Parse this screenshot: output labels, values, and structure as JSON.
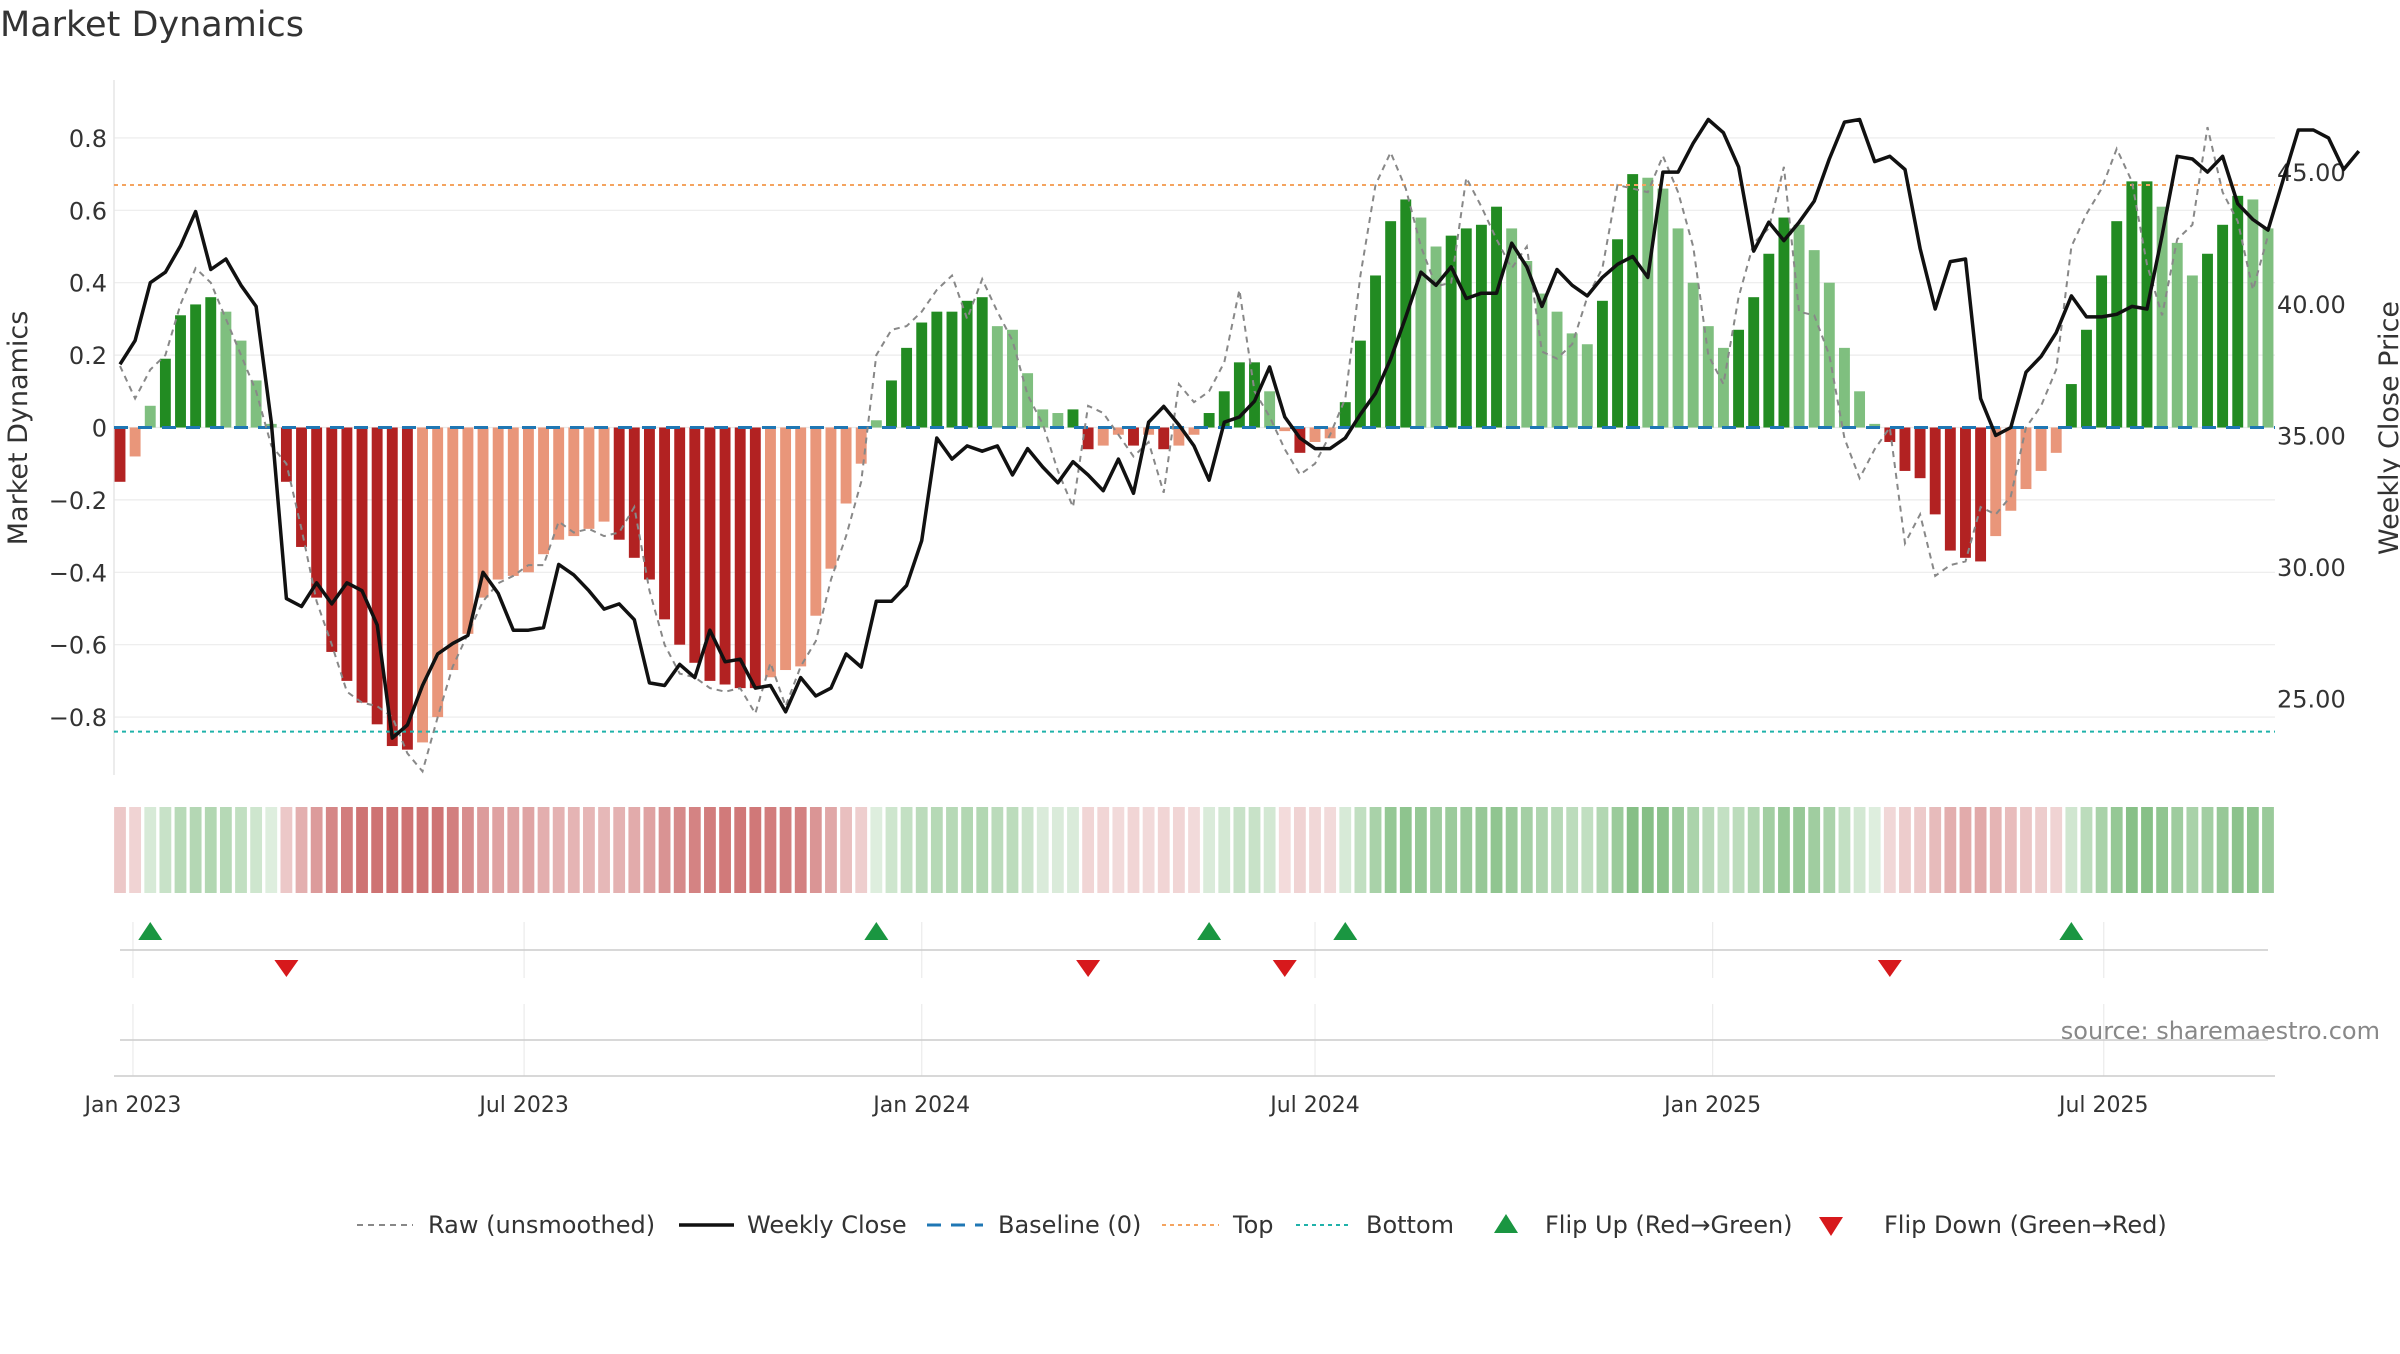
{
  "chart_data": {
    "type": "bar",
    "title": "Market Dynamics",
    "ylabel": "Market Dynamics",
    "y2label": "Weekly Close Price",
    "ylim": [
      -0.96,
      0.96
    ],
    "y2lim": [
      22.1,
      48.5
    ],
    "yticks": [
      0.8,
      0.6,
      0.4,
      0.2,
      0,
      -0.2,
      -0.4,
      -0.6,
      -0.8
    ],
    "yticklabels": [
      "0.8",
      "0.6",
      "0.4",
      "0.2",
      "0",
      "−0.2",
      "−0.4",
      "−0.6",
      "−0.8"
    ],
    "y2ticks": [
      45,
      40,
      35,
      30,
      25
    ],
    "y2ticklabels": [
      "45.00",
      "40.00",
      "35.00",
      "30.00",
      "25.00"
    ],
    "xticks": [
      "2023-01-01",
      "2023-07-01",
      "2024-01-01",
      "2024-07-01",
      "2025-01-01",
      "2025-07-01"
    ],
    "xticklabels": [
      "Jan 2023",
      "Jul 2023",
      "Jan 2024",
      "Jul 2024",
      "Jan 2025",
      "Jul 2025"
    ],
    "start_week": "2022-12-26",
    "top_line": 0.67,
    "bottom_line": -0.84,
    "baseline": 0,
    "grid": true,
    "legend_position": "bottom-center",
    "annotation": "source: sharemaestro.com",
    "colors": {
      "pos_strong": "#228b22",
      "pos_weak": "#7fbf7f",
      "neg_strong": "#b22222",
      "neg_weak": "#e9967a",
      "raw": "#888888",
      "close": "#111111",
      "baseline": "#1f77b4",
      "top": "#f4a460",
      "bottom": "#20b2aa",
      "flip_up": "#1a9641",
      "flip_down": "#d7191c"
    },
    "bars": [
      -0.15,
      -0.08,
      0.06,
      0.19,
      0.31,
      0.34,
      0.36,
      0.32,
      0.24,
      0.13,
      0.01,
      -0.15,
      -0.33,
      -0.47,
      -0.62,
      -0.7,
      -0.76,
      -0.82,
      -0.88,
      -0.89,
      -0.87,
      -0.8,
      -0.67,
      -0.57,
      -0.47,
      -0.42,
      -0.41,
      -0.4,
      -0.35,
      -0.31,
      -0.3,
      -0.28,
      -0.26,
      -0.31,
      -0.36,
      -0.42,
      -0.53,
      -0.6,
      -0.65,
      -0.7,
      -0.71,
      -0.72,
      -0.72,
      -0.69,
      -0.67,
      -0.66,
      -0.52,
      -0.39,
      -0.21,
      -0.1,
      0.02,
      0.13,
      0.22,
      0.29,
      0.32,
      0.32,
      0.35,
      0.36,
      0.28,
      0.27,
      0.15,
      0.05,
      0.04,
      0.05,
      -0.06,
      -0.05,
      -0.02,
      -0.05,
      -0.02,
      -0.06,
      -0.05,
      -0.02,
      0.04,
      0.1,
      0.18,
      0.18,
      0.1,
      -0.01,
      -0.07,
      -0.04,
      -0.03,
      0.07,
      0.24,
      0.42,
      0.57,
      0.63,
      0.58,
      0.5,
      0.53,
      0.55,
      0.56,
      0.61,
      0.55,
      0.46,
      0.37,
      0.32,
      0.26,
      0.23,
      0.35,
      0.52,
      0.7,
      0.69,
      0.66,
      0.55,
      0.4,
      0.28,
      0.22,
      0.27,
      0.36,
      0.48,
      0.58,
      0.56,
      0.49,
      0.4,
      0.22,
      0.1,
      0.01,
      -0.04,
      -0.12,
      -0.14,
      -0.24,
      -0.34,
      -0.36,
      -0.37,
      -0.3,
      -0.23,
      -0.17,
      -0.12,
      -0.07,
      0.12,
      0.27,
      0.42,
      0.57,
      0.68,
      0.68,
      0.61,
      0.51,
      0.42,
      0.48,
      0.56,
      0.64,
      0.63,
      0.55
    ],
    "close": [
      37.7,
      38.6,
      40.8,
      41.2,
      42.2,
      43.5,
      41.3,
      41.7,
      40.7,
      39.9,
      35.5,
      28.8,
      28.5,
      29.4,
      28.6,
      29.4,
      29.1,
      27.8,
      23.5,
      24.0,
      25.5,
      26.7,
      27.1,
      27.4,
      29.8,
      29.0,
      27.6,
      27.6,
      27.7,
      30.1,
      29.7,
      29.1,
      28.4,
      28.6,
      28.0,
      25.6,
      25.5,
      26.3,
      25.8,
      27.6,
      26.4,
      26.5,
      25.4,
      25.5,
      24.5,
      25.8,
      25.1,
      25.4,
      26.7,
      26.2,
      28.7,
      28.7,
      29.3,
      31.0,
      34.9,
      34.1,
      34.6,
      34.4,
      34.6,
      33.5,
      34.5,
      33.8,
      33.2,
      34.0,
      33.5,
      32.9,
      34.1,
      32.8,
      35.5,
      36.1,
      35.4,
      34.6,
      33.3,
      35.5,
      35.7,
      36.3,
      37.6,
      35.7,
      34.9,
      34.5,
      34.5,
      34.9,
      35.8,
      36.6,
      37.9,
      39.5,
      41.2,
      40.7,
      41.4,
      40.2,
      40.4,
      40.4,
      42.3,
      41.4,
      39.9,
      41.3,
      40.7,
      40.3,
      41.0,
      41.5,
      41.8,
      41.0,
      45.0,
      45.0,
      46.1,
      47.0,
      46.5,
      45.2,
      42.0,
      43.1,
      42.4,
      43.1,
      43.9,
      45.5,
      46.9,
      47.0,
      45.4,
      45.6,
      45.1,
      42.1,
      39.8,
      41.6,
      41.7,
      36.4,
      35.0,
      35.3,
      37.4,
      38.0,
      38.9,
      40.3,
      39.5,
      39.5,
      39.6,
      39.9,
      39.8,
      42.6,
      45.6,
      45.5,
      45.0,
      45.6,
      43.8,
      43.2,
      42.8,
      44.7,
      46.6,
      46.6,
      46.3,
      45.1,
      45.8
    ],
    "raw": [
      0.17,
      0.08,
      0.16,
      0.2,
      0.34,
      0.44,
      0.4,
      0.3,
      0.2,
      0.1,
      -0.05,
      -0.1,
      -0.28,
      -0.48,
      -0.6,
      -0.73,
      -0.76,
      -0.77,
      -0.8,
      -0.9,
      -0.95,
      -0.8,
      -0.66,
      -0.57,
      -0.48,
      -0.43,
      -0.41,
      -0.38,
      -0.38,
      -0.26,
      -0.29,
      -0.28,
      -0.3,
      -0.29,
      -0.22,
      -0.45,
      -0.6,
      -0.68,
      -0.69,
      -0.72,
      -0.73,
      -0.72,
      -0.79,
      -0.65,
      -0.77,
      -0.66,
      -0.59,
      -0.42,
      -0.3,
      -0.15,
      0.2,
      0.27,
      0.28,
      0.32,
      0.38,
      0.42,
      0.3,
      0.41,
      0.32,
      0.24,
      0.09,
      0.01,
      -0.12,
      -0.22,
      0.06,
      0.04,
      -0.02,
      -0.08,
      -0.04,
      -0.18,
      0.12,
      0.07,
      0.1,
      0.18,
      0.38,
      0.1,
      0.03,
      -0.06,
      -0.13,
      -0.1,
      -0.02,
      0.08,
      0.42,
      0.67,
      0.76,
      0.66,
      0.5,
      0.39,
      0.4,
      0.69,
      0.61,
      0.52,
      0.44,
      0.5,
      0.21,
      0.19,
      0.23,
      0.36,
      0.44,
      0.67,
      0.66,
      0.65,
      0.75,
      0.65,
      0.5,
      0.2,
      0.12,
      0.36,
      0.51,
      0.55,
      0.72,
      0.32,
      0.31,
      0.2,
      -0.03,
      -0.14,
      -0.06,
      0.0,
      -0.32,
      -0.24,
      -0.41,
      -0.38,
      -0.37,
      -0.22,
      -0.24,
      -0.19,
      0.0,
      0.06,
      0.16,
      0.5,
      0.59,
      0.66,
      0.77,
      0.68,
      0.45,
      0.31,
      0.52,
      0.56,
      0.83,
      0.65,
      0.57,
      0.38,
      0.53
    ]
  },
  "legend": {
    "raw": "Raw (unsmoothed)",
    "close": "Weekly Close",
    "baseline": "Baseline (0)",
    "top": "Top",
    "bottom": "Bottom",
    "flip_up": "Flip Up (Red→Green)",
    "flip_down": "Flip Down (Green→Red)"
  }
}
